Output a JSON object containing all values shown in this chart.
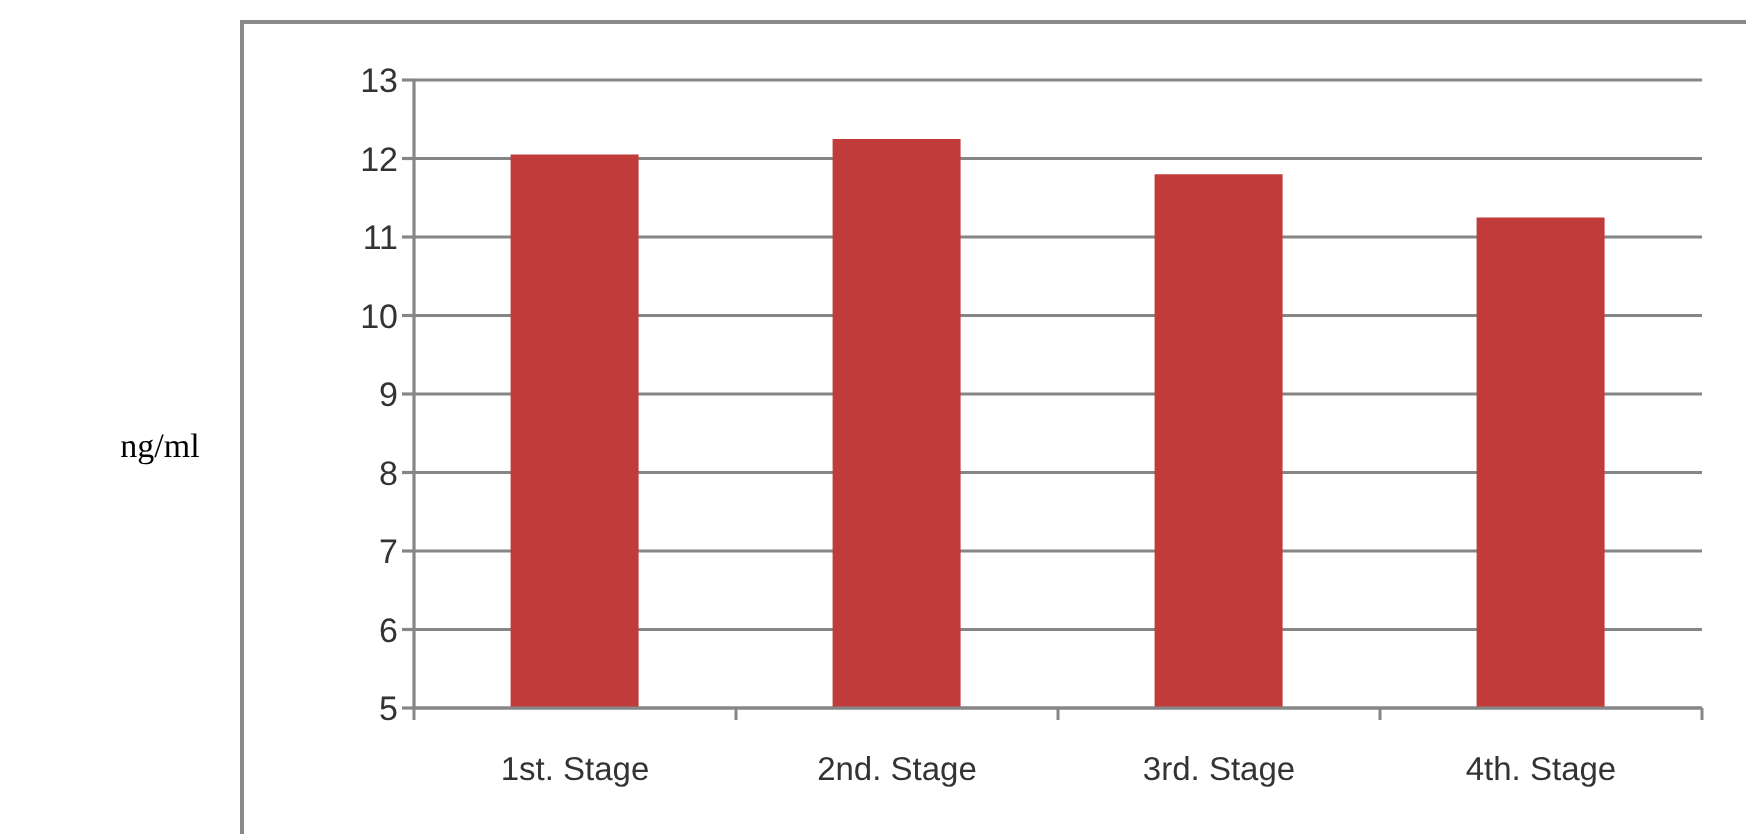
{
  "chart_data": {
    "type": "bar",
    "ylabel": "ng/ml",
    "categories": [
      "1st. Stage",
      "2nd. Stage",
      "3rd. Stage",
      "4th. Stage"
    ],
    "values": [
      12.05,
      12.25,
      11.8,
      11.25
    ],
    "color": "#c23b3b",
    "ylim": [
      5,
      13
    ],
    "yticks": [
      5,
      6,
      7,
      8,
      9,
      10,
      11,
      12,
      13
    ],
    "grid": "y"
  }
}
